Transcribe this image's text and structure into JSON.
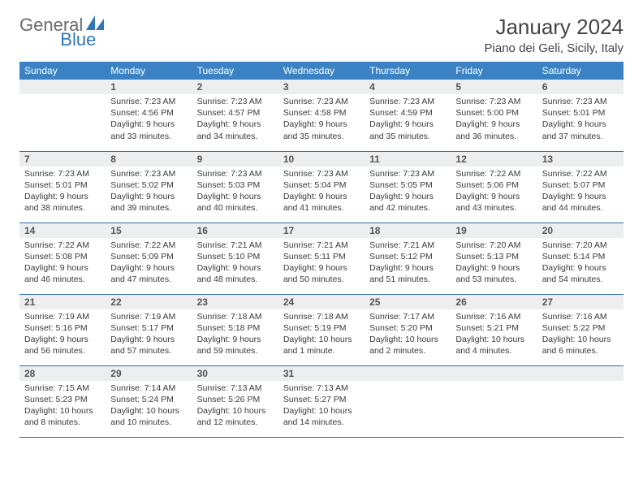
{
  "brand": {
    "part1": "General",
    "part2": "Blue"
  },
  "header": {
    "month": "January 2024",
    "location": "Piano dei Geli, Sicily, Italy"
  },
  "colors": {
    "header_bg": "#3a82c4",
    "header_text": "#ffffff",
    "daynum_bg": "#eceef0",
    "row_border": "#2f6ea6",
    "brand_blue": "#2f77b8",
    "brand_gray": "#6a6a6a",
    "body_text": "#3a3a3a",
    "page_bg": "#ffffff"
  },
  "daynames": [
    "Sunday",
    "Monday",
    "Tuesday",
    "Wednesday",
    "Thursday",
    "Friday",
    "Saturday"
  ],
  "weeks": [
    [
      null,
      {
        "n": "1",
        "sr": "Sunrise: 7:23 AM",
        "ss": "Sunset: 4:56 PM",
        "d1": "Daylight: 9 hours",
        "d2": "and 33 minutes."
      },
      {
        "n": "2",
        "sr": "Sunrise: 7:23 AM",
        "ss": "Sunset: 4:57 PM",
        "d1": "Daylight: 9 hours",
        "d2": "and 34 minutes."
      },
      {
        "n": "3",
        "sr": "Sunrise: 7:23 AM",
        "ss": "Sunset: 4:58 PM",
        "d1": "Daylight: 9 hours",
        "d2": "and 35 minutes."
      },
      {
        "n": "4",
        "sr": "Sunrise: 7:23 AM",
        "ss": "Sunset: 4:59 PM",
        "d1": "Daylight: 9 hours",
        "d2": "and 35 minutes."
      },
      {
        "n": "5",
        "sr": "Sunrise: 7:23 AM",
        "ss": "Sunset: 5:00 PM",
        "d1": "Daylight: 9 hours",
        "d2": "and 36 minutes."
      },
      {
        "n": "6",
        "sr": "Sunrise: 7:23 AM",
        "ss": "Sunset: 5:01 PM",
        "d1": "Daylight: 9 hours",
        "d2": "and 37 minutes."
      }
    ],
    [
      {
        "n": "7",
        "sr": "Sunrise: 7:23 AM",
        "ss": "Sunset: 5:01 PM",
        "d1": "Daylight: 9 hours",
        "d2": "and 38 minutes."
      },
      {
        "n": "8",
        "sr": "Sunrise: 7:23 AM",
        "ss": "Sunset: 5:02 PM",
        "d1": "Daylight: 9 hours",
        "d2": "and 39 minutes."
      },
      {
        "n": "9",
        "sr": "Sunrise: 7:23 AM",
        "ss": "Sunset: 5:03 PM",
        "d1": "Daylight: 9 hours",
        "d2": "and 40 minutes."
      },
      {
        "n": "10",
        "sr": "Sunrise: 7:23 AM",
        "ss": "Sunset: 5:04 PM",
        "d1": "Daylight: 9 hours",
        "d2": "and 41 minutes."
      },
      {
        "n": "11",
        "sr": "Sunrise: 7:23 AM",
        "ss": "Sunset: 5:05 PM",
        "d1": "Daylight: 9 hours",
        "d2": "and 42 minutes."
      },
      {
        "n": "12",
        "sr": "Sunrise: 7:22 AM",
        "ss": "Sunset: 5:06 PM",
        "d1": "Daylight: 9 hours",
        "d2": "and 43 minutes."
      },
      {
        "n": "13",
        "sr": "Sunrise: 7:22 AM",
        "ss": "Sunset: 5:07 PM",
        "d1": "Daylight: 9 hours",
        "d2": "and 44 minutes."
      }
    ],
    [
      {
        "n": "14",
        "sr": "Sunrise: 7:22 AM",
        "ss": "Sunset: 5:08 PM",
        "d1": "Daylight: 9 hours",
        "d2": "and 46 minutes."
      },
      {
        "n": "15",
        "sr": "Sunrise: 7:22 AM",
        "ss": "Sunset: 5:09 PM",
        "d1": "Daylight: 9 hours",
        "d2": "and 47 minutes."
      },
      {
        "n": "16",
        "sr": "Sunrise: 7:21 AM",
        "ss": "Sunset: 5:10 PM",
        "d1": "Daylight: 9 hours",
        "d2": "and 48 minutes."
      },
      {
        "n": "17",
        "sr": "Sunrise: 7:21 AM",
        "ss": "Sunset: 5:11 PM",
        "d1": "Daylight: 9 hours",
        "d2": "and 50 minutes."
      },
      {
        "n": "18",
        "sr": "Sunrise: 7:21 AM",
        "ss": "Sunset: 5:12 PM",
        "d1": "Daylight: 9 hours",
        "d2": "and 51 minutes."
      },
      {
        "n": "19",
        "sr": "Sunrise: 7:20 AM",
        "ss": "Sunset: 5:13 PM",
        "d1": "Daylight: 9 hours",
        "d2": "and 53 minutes."
      },
      {
        "n": "20",
        "sr": "Sunrise: 7:20 AM",
        "ss": "Sunset: 5:14 PM",
        "d1": "Daylight: 9 hours",
        "d2": "and 54 minutes."
      }
    ],
    [
      {
        "n": "21",
        "sr": "Sunrise: 7:19 AM",
        "ss": "Sunset: 5:16 PM",
        "d1": "Daylight: 9 hours",
        "d2": "and 56 minutes."
      },
      {
        "n": "22",
        "sr": "Sunrise: 7:19 AM",
        "ss": "Sunset: 5:17 PM",
        "d1": "Daylight: 9 hours",
        "d2": "and 57 minutes."
      },
      {
        "n": "23",
        "sr": "Sunrise: 7:18 AM",
        "ss": "Sunset: 5:18 PM",
        "d1": "Daylight: 9 hours",
        "d2": "and 59 minutes."
      },
      {
        "n": "24",
        "sr": "Sunrise: 7:18 AM",
        "ss": "Sunset: 5:19 PM",
        "d1": "Daylight: 10 hours",
        "d2": "and 1 minute."
      },
      {
        "n": "25",
        "sr": "Sunrise: 7:17 AM",
        "ss": "Sunset: 5:20 PM",
        "d1": "Daylight: 10 hours",
        "d2": "and 2 minutes."
      },
      {
        "n": "26",
        "sr": "Sunrise: 7:16 AM",
        "ss": "Sunset: 5:21 PM",
        "d1": "Daylight: 10 hours",
        "d2": "and 4 minutes."
      },
      {
        "n": "27",
        "sr": "Sunrise: 7:16 AM",
        "ss": "Sunset: 5:22 PM",
        "d1": "Daylight: 10 hours",
        "d2": "and 6 minutes."
      }
    ],
    [
      {
        "n": "28",
        "sr": "Sunrise: 7:15 AM",
        "ss": "Sunset: 5:23 PM",
        "d1": "Daylight: 10 hours",
        "d2": "and 8 minutes."
      },
      {
        "n": "29",
        "sr": "Sunrise: 7:14 AM",
        "ss": "Sunset: 5:24 PM",
        "d1": "Daylight: 10 hours",
        "d2": "and 10 minutes."
      },
      {
        "n": "30",
        "sr": "Sunrise: 7:13 AM",
        "ss": "Sunset: 5:26 PM",
        "d1": "Daylight: 10 hours",
        "d2": "and 12 minutes."
      },
      {
        "n": "31",
        "sr": "Sunrise: 7:13 AM",
        "ss": "Sunset: 5:27 PM",
        "d1": "Daylight: 10 hours",
        "d2": "and 14 minutes."
      },
      null,
      null,
      null
    ]
  ]
}
